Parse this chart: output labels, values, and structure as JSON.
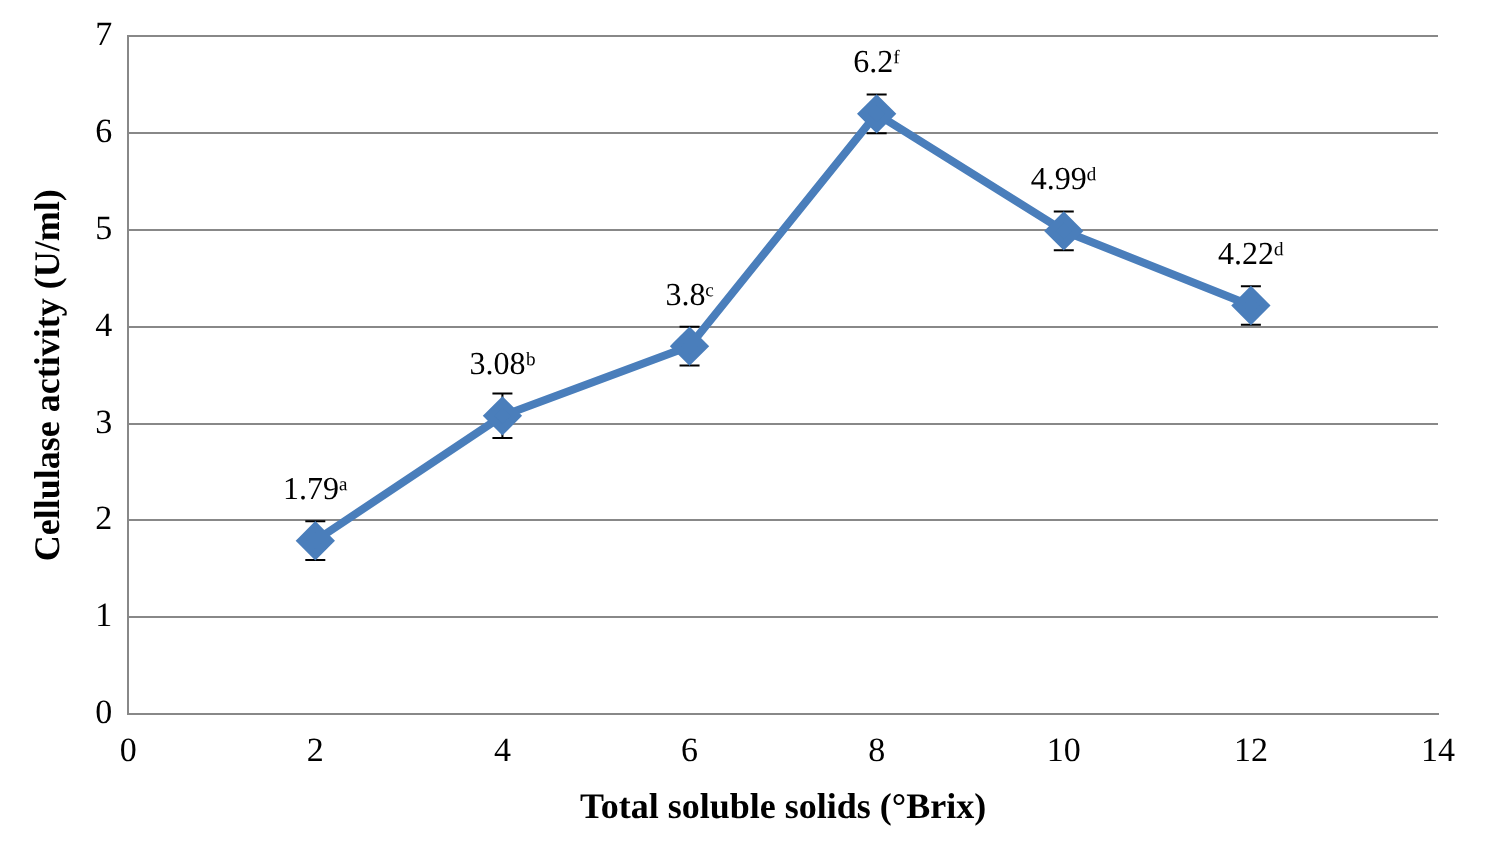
{
  "chart_data": {
    "type": "line",
    "xlabel": "Total soluble solids (°Brix)",
    "ylabel": "Cellulase activity (U/ml)",
    "x": [
      2,
      4,
      6,
      8,
      10,
      12
    ],
    "series": [
      {
        "color": "#4a7ebb",
        "values": [
          1.79,
          3.08,
          3.8,
          6.2,
          4.99,
          4.22
        ],
        "errors": [
          0.2,
          0.23,
          0.2,
          0.2,
          0.2,
          0.2
        ],
        "value_labels": [
          "1.79ᵃ",
          "3.08ᵇ",
          "3.8ᶜ",
          "6.2ᶠ",
          "4.99ᵈ",
          "4.22ᵈ"
        ]
      }
    ],
    "xlim": [
      0,
      14
    ],
    "xticks": [
      0,
      2,
      4,
      6,
      8,
      10,
      12,
      14
    ],
    "ylim": [
      0,
      7
    ],
    "yticks": [
      0,
      1,
      2,
      3,
      4,
      5,
      6,
      7
    ],
    "grid": "y",
    "legend": false,
    "marker": "diamond",
    "line_style": "solid"
  }
}
